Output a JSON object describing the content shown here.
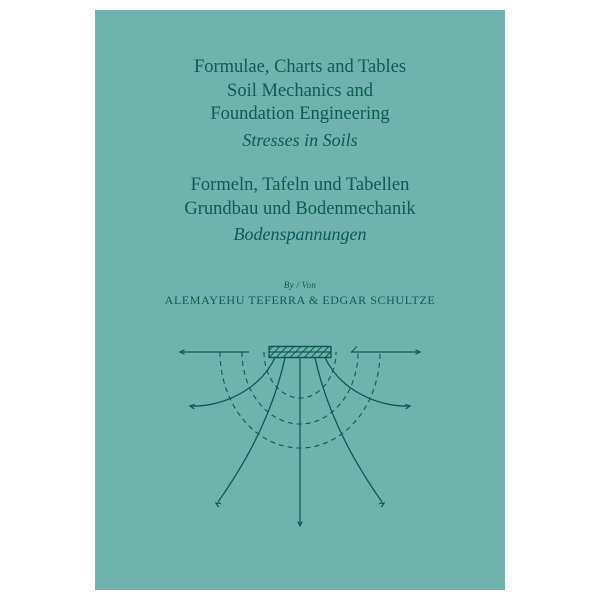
{
  "colors": {
    "background": "#6fb3ac",
    "text": "#0d5a5a",
    "diagram_stroke": "#0d5a5a"
  },
  "title_en": {
    "line1": "Formulae, Charts and Tables",
    "line2": "Soil Mechanics and",
    "line3": "Foundation Engineering",
    "subtitle": "Stresses in Soils"
  },
  "title_de": {
    "line1": "Formeln, Tafeln und Tabellen",
    "line2": "Grundbau und Bodenmechanik",
    "subtitle": "Bodenspannungen"
  },
  "byline": "By / Von",
  "authors": "ALEMAYEHU TEFERRA & EDGAR SCHULTZE",
  "diagram": {
    "type": "infographic",
    "description": "stress bulb under foundation",
    "stroke_width_solid": 1.3,
    "stroke_width_dashed": 1.1,
    "dash_pattern": "5,4",
    "foundation_hatch_color": "#0d5a5a",
    "arrow_size": 5
  }
}
